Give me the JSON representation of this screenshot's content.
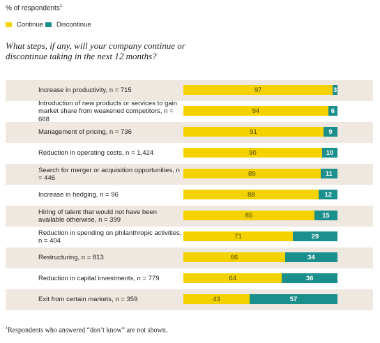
{
  "header": {
    "label": "% of respondents",
    "footnote_marker": "1"
  },
  "legend": [
    {
      "name": "Continue",
      "color": "#f4d200"
    },
    {
      "name": "Discontinue",
      "color": "#1b8f8c"
    }
  ],
  "question": "What steps, if any, will your company continue or discontinue taking in the next 12 months?",
  "chart_data": {
    "type": "bar",
    "orientation": "horizontal",
    "stacked": true,
    "unit": "% of respondents",
    "categories": [
      "Increase in productivity, n = 715",
      "Introduction of new products or services to gain market share from weakened competitors, n = 668",
      "Management of pricing, n = 736",
      "Reduction in operating costs, n = 1,424",
      "Search for merger or acquisition opportunities, n = 446",
      "Increase in hedging, n = 96",
      "Hiring of talent that would not have been available otherwise, n = 399",
      "Reduction in spending on philanthropic activities, n = 404",
      "Restructuring, n = 813",
      "Reduction in capital investments, n = 779",
      "Exit from certain markets, n = 359"
    ],
    "series": [
      {
        "name": "Continue",
        "color": "#f4d200",
        "values": [
          97,
          94,
          91,
          90,
          89,
          88,
          85,
          71,
          66,
          64,
          43
        ]
      },
      {
        "name": "Discontinue",
        "color": "#1b8f8c",
        "values": [
          3,
          6,
          9,
          10,
          11,
          12,
          15,
          29,
          34,
          36,
          57
        ]
      }
    ],
    "xlim": [
      0,
      100
    ],
    "legend_position": "top-left"
  },
  "footnote": {
    "marker": "1",
    "text": "Respondents who answered “don’t know” are not shown."
  }
}
